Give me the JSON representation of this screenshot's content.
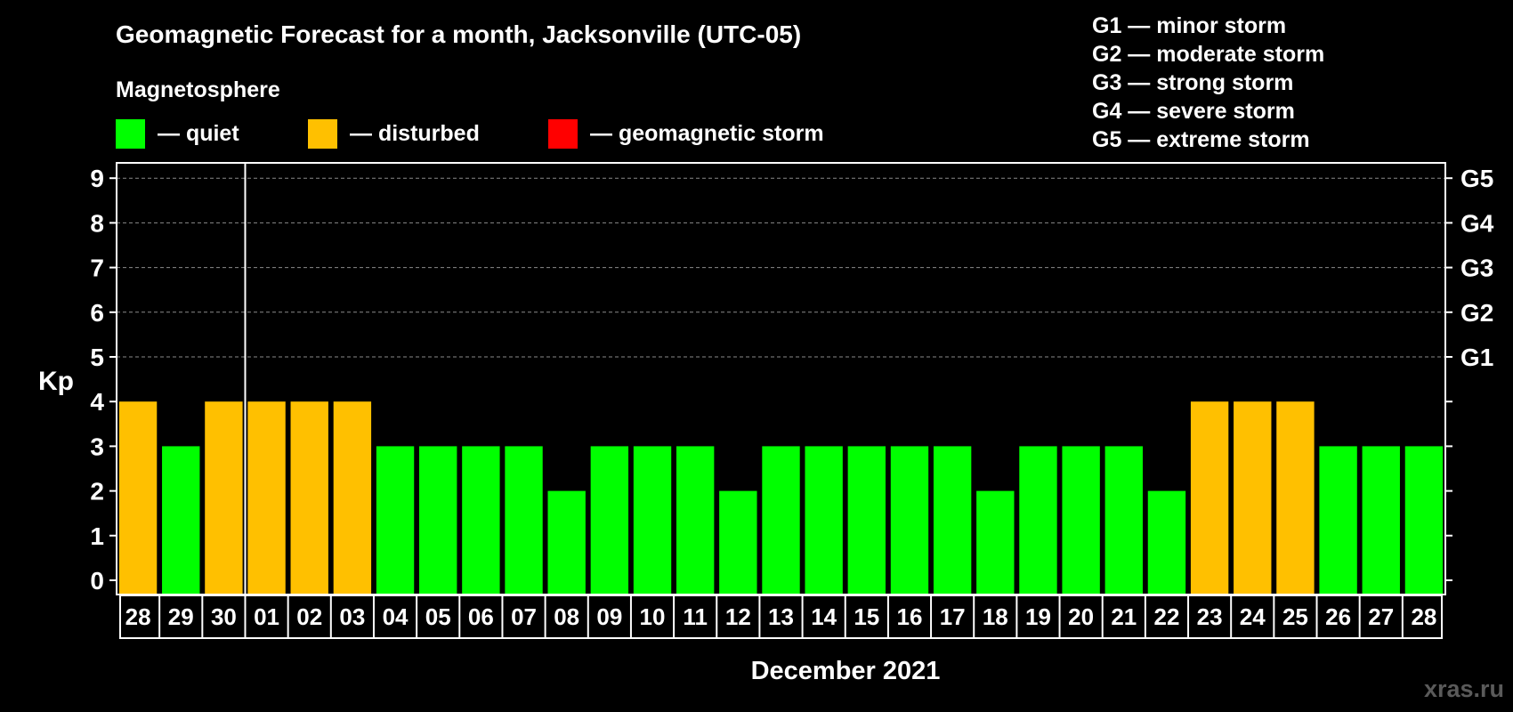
{
  "chart_data": {
    "type": "bar",
    "title": "Geomagnetic Forecast for a month, Jacksonville (UTC-05)",
    "xlabel": "December 2021",
    "ylabel": "Kp",
    "ylim": [
      0,
      9.3
    ],
    "yticks": [
      0,
      1,
      2,
      3,
      4,
      5,
      6,
      7,
      8,
      9
    ],
    "right_ticks": [
      {
        "value": 5,
        "label": "G1"
      },
      {
        "value": 6,
        "label": "G2"
      },
      {
        "value": 7,
        "label": "G3"
      },
      {
        "value": 8,
        "label": "G4"
      },
      {
        "value": 9,
        "label": "G5"
      }
    ],
    "grid": true,
    "categories": [
      "28",
      "29",
      "30",
      "01",
      "02",
      "03",
      "04",
      "05",
      "06",
      "07",
      "08",
      "09",
      "10",
      "11",
      "12",
      "13",
      "14",
      "15",
      "16",
      "17",
      "18",
      "19",
      "20",
      "21",
      "22",
      "23",
      "24",
      "25",
      "26",
      "27",
      "28"
    ],
    "values": [
      4,
      3,
      4,
      4,
      4,
      4,
      3,
      3,
      3,
      3,
      2,
      3,
      3,
      3,
      2,
      3,
      3,
      3,
      3,
      3,
      2,
      3,
      3,
      3,
      2,
      4,
      4,
      4,
      3,
      3,
      3
    ],
    "month_divider_after_index": 2,
    "colors": {
      "quiet": "#00ff00",
      "disturbed": "#ffc000",
      "storm": "#ff0000"
    },
    "legend": {
      "heading": "Magnetosphere",
      "items": [
        {
          "label": "— quiet",
          "color": "#00ff00"
        },
        {
          "label": "— disturbed",
          "color": "#ffc000"
        },
        {
          "label": "— geomagnetic storm",
          "color": "#ff0000"
        }
      ]
    },
    "storm_scale": [
      "G1 — minor storm",
      "G2 — moderate storm",
      "G3 — strong storm",
      "G4 — severe storm",
      "G5 — extreme storm"
    ]
  },
  "watermark": "xras.ru"
}
